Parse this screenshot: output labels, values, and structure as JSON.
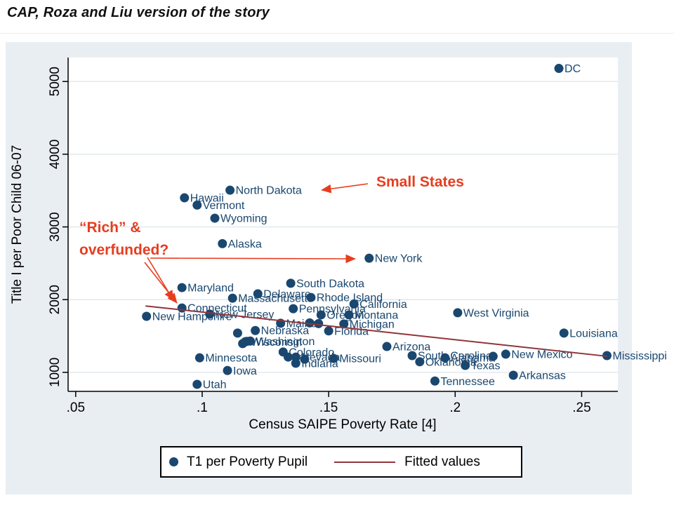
{
  "title": "CAP, Roza and Liu version of the story",
  "colors": {
    "point": "#1a476f",
    "point_label": "#1a476f",
    "fitted_line": "#90353b",
    "annotation": "#e63d1f",
    "figure_background": "#e9eef3",
    "plot_background": "#ffffff",
    "gridline": "#dde5eb",
    "axis": "#000000"
  },
  "legend": {
    "marker_label": "T1 per Poverty Pupil",
    "line_label": "Fitted values"
  },
  "chart_data": {
    "type": "scatter",
    "xlabel": "Census SAIPE Poverty Rate [4]",
    "ylabel": "Title I per Poor Child 06-07",
    "xlim": [
      0.047,
      0.2643
    ],
    "ylim": [
      738,
      5330
    ],
    "xticks": [
      0.05,
      0.1,
      0.15,
      0.2,
      0.25
    ],
    "xtick_labels": [
      ".05",
      ".1",
      ".15",
      ".2",
      ".25"
    ],
    "yticks": [
      1000,
      2000,
      3000,
      4000,
      5000
    ],
    "ytick_labels": [
      "1000",
      "2000",
      "3000",
      "4000",
      "5000"
    ],
    "grid": "horizontal-only",
    "legend_entries": [
      {
        "type": "marker",
        "label": "T1 per Poverty Pupil"
      },
      {
        "type": "line",
        "label": "Fitted values"
      }
    ],
    "annotations": {
      "small_states": "Small States",
      "rich_line1": "“Rich” &",
      "rich_line2": "overfunded?"
    },
    "fitted_line": {
      "x1": 0.0776,
      "y1": 1913,
      "x2": 0.26,
      "y2": 1221
    },
    "points": [
      {
        "label": "DC",
        "x": 0.241,
        "y": 5180
      },
      {
        "label": "North Dakota",
        "x": 0.111,
        "y": 3505
      },
      {
        "label": "Hawaii",
        "x": 0.093,
        "y": 3400
      },
      {
        "label": "Vermont",
        "x": 0.098,
        "y": 3300
      },
      {
        "label": "Wyoming",
        "x": 0.105,
        "y": 3120
      },
      {
        "label": "Alaska",
        "x": 0.108,
        "y": 2770
      },
      {
        "label": "New York",
        "x": 0.166,
        "y": 2570
      },
      {
        "label": "South Dakota",
        "x": 0.135,
        "y": 2225
      },
      {
        "label": "Maryland",
        "x": 0.092,
        "y": 2165
      },
      {
        "label": "Delaware",
        "x": 0.122,
        "y": 2080
      },
      {
        "label": "Rhode Island",
        "x": 0.143,
        "y": 2030
      },
      {
        "label": "Massachusetts",
        "x": 0.112,
        "y": 2020
      },
      {
        "label": "California",
        "x": 0.16,
        "y": 1940
      },
      {
        "label": "Connecticut",
        "x": 0.092,
        "y": 1885
      },
      {
        "label": "Pennsylvania",
        "x": 0.136,
        "y": 1875
      },
      {
        "label": "West Virginia",
        "x": 0.201,
        "y": 1820
      },
      {
        "label": "New Jersey",
        "x": 0.103,
        "y": 1800
      },
      {
        "label": "Oregon",
        "x": 0.147,
        "y": 1790
      },
      {
        "label": "Montana",
        "x": 0.158,
        "y": 1790
      },
      {
        "label": "New Hampshire",
        "x": 0.078,
        "y": 1770
      },
      {
        "label": "Maine",
        "x": 0.131,
        "y": 1675
      },
      {
        "label": "Michigan",
        "x": 0.156,
        "y": 1665
      },
      {
        "label": "Nebraska",
        "x": 0.121,
        "y": 1575
      },
      {
        "label": "Florida",
        "x": 0.15,
        "y": 1570
      },
      {
        "label": "Louisiana",
        "x": 0.243,
        "y": 1540
      },
      {
        "label": "Washington",
        "x": 0.119,
        "y": 1430
      },
      {
        "label": "Wisconsin",
        "x": 0.117,
        "y": 1420
      },
      {
        "label": "Arizona",
        "x": 0.173,
        "y": 1355
      },
      {
        "label": "Colorado",
        "x": 0.132,
        "y": 1280
      },
      {
        "label": "New Mexico",
        "x": 0.22,
        "y": 1250
      },
      {
        "label": "South Carolina",
        "x": 0.183,
        "y": 1230
      },
      {
        "label": "Mississippi",
        "x": 0.26,
        "y": 1230
      },
      {
        "label": "Nevada",
        "x": 0.137,
        "y": 1210
      },
      {
        "label": "Minnesota",
        "x": 0.099,
        "y": 1200
      },
      {
        "label": "Alabama",
        "x": 0.196,
        "y": 1200
      },
      {
        "label": "Missouri",
        "x": 0.152,
        "y": 1190
      },
      {
        "label": "Oklahoma",
        "x": 0.186,
        "y": 1145
      },
      {
        "label": "Indiana",
        "x": 0.137,
        "y": 1125
      },
      {
        "label": "Texas",
        "x": 0.204,
        "y": 1095
      },
      {
        "label": "Iowa",
        "x": 0.11,
        "y": 1025
      },
      {
        "label": "Arkansas",
        "x": 0.223,
        "y": 960
      },
      {
        "label": "Tennessee",
        "x": 0.192,
        "y": 880
      },
      {
        "label": "Utah",
        "x": 0.098,
        "y": 835
      }
    ],
    "unlabeled_points": [
      {
        "x": 0.114,
        "y": 1540
      },
      {
        "x": 0.1425,
        "y": 1680
      },
      {
        "x": 0.146,
        "y": 1670
      },
      {
        "x": 0.1176,
        "y": 1425
      },
      {
        "x": 0.116,
        "y": 1395
      },
      {
        "x": 0.134,
        "y": 1210
      },
      {
        "x": 0.1405,
        "y": 1180
      },
      {
        "x": 0.215,
        "y": 1220
      }
    ]
  }
}
